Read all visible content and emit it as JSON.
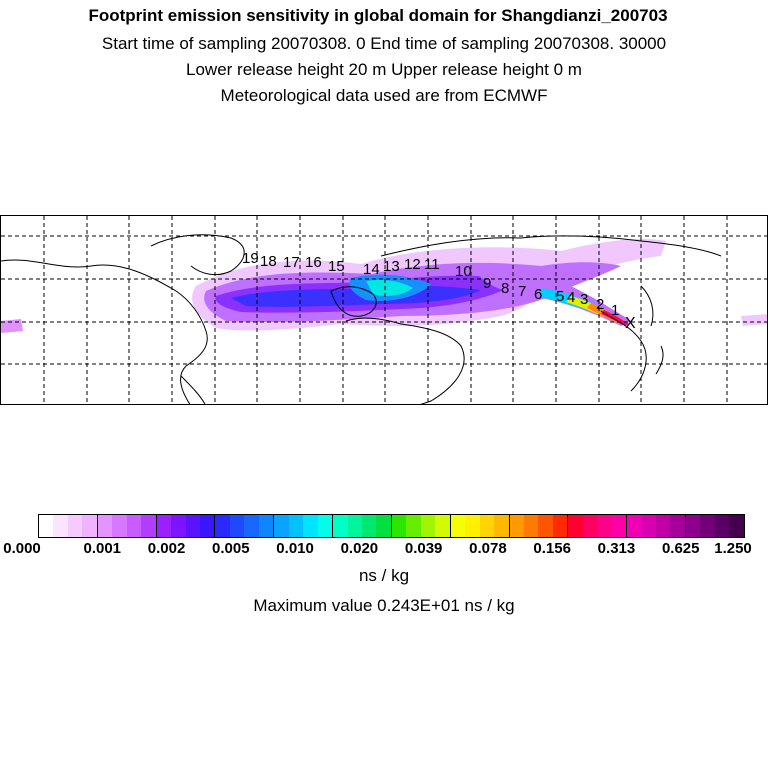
{
  "header": {
    "line1": "Footprint emission sensitivity in global domain for Shangdianzi_200703",
    "line2": "Start time of sampling 20070308.     0      End time of sampling 20070308. 30000",
    "line3": "Lower release height   20 m           Upper release height    0 m",
    "line4": "Meteorological data used are from ECMWF"
  },
  "map": {
    "trajectory_labels": [
      "19",
      "18",
      "17",
      "16",
      "15",
      "14",
      "13",
      "12",
      "11",
      "10",
      "9",
      "8",
      "7",
      "6",
      "5",
      "4",
      "3",
      "2",
      "1"
    ],
    "receptor_marker": "X"
  },
  "colorbar": {
    "tick_labels": [
      "0.000",
      "0.001",
      "0.002",
      "0.005",
      "0.010",
      "0.020",
      "0.039",
      "0.078",
      "0.156",
      "0.313",
      "0.625",
      "1.250"
    ],
    "colors": [
      "#ffffff",
      "#fbe4ff",
      "#f6ccff",
      "#efb3ff",
      "#e394ff",
      "#d877ff",
      "#c95cff",
      "#b23cff",
      "#9a20ff",
      "#7d14ff",
      "#5a12ff",
      "#3a18ff",
      "#2a2aff",
      "#1f48ff",
      "#1666ff",
      "#0f85ff",
      "#0aa3ff",
      "#05c2ff",
      "#00e5ff",
      "#00ffe8",
      "#00ffc4",
      "#00f59b",
      "#00e870",
      "#00e040",
      "#2ae600",
      "#66ee00",
      "#a0f500",
      "#d2fa00",
      "#f5ff00",
      "#fff000",
      "#ffd400",
      "#ffb800",
      "#ff9a00",
      "#ff7a00",
      "#ff5400",
      "#ff2a00",
      "#ff0030",
      "#ff0060",
      "#ff008a",
      "#ff00a8",
      "#f000b4",
      "#d800b0",
      "#c000a6",
      "#a6009a",
      "#8c008c",
      "#720078",
      "#5a0064",
      "#44004c"
    ],
    "unit": "ns / kg"
  },
  "footer": {
    "max_value": "Maximum value  0.243E+01 ns / kg"
  }
}
